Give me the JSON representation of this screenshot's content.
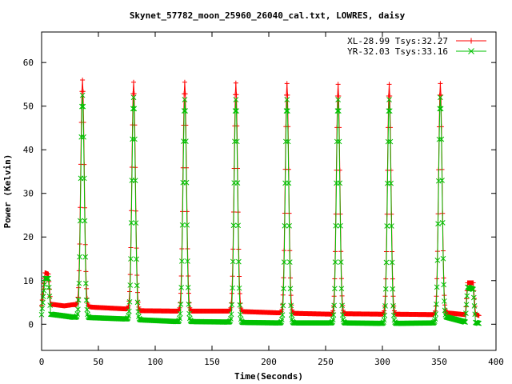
{
  "chart_data": {
    "type": "line",
    "title": "Skynet_57782_moon_25960_26040_cal.txt, LOWRES, daisy",
    "xlabel": "Time(Seconds)",
    "ylabel": "Power (Kelvin)",
    "xlim": [
      0,
      400
    ],
    "ylim": [
      -6,
      67
    ],
    "x_ticks": [
      0,
      50,
      100,
      150,
      200,
      250,
      300,
      350,
      400
    ],
    "y_ticks": [
      0,
      10,
      20,
      30,
      40,
      50,
      60
    ],
    "grid": false,
    "legend_position": "top-right",
    "series": [
      {
        "name": "XL-28.99 Tsys:32.27",
        "color": "#ff0000",
        "marker": "+",
        "baseline_points": [
          [
            0,
            4.3
          ],
          [
            3,
            11.8
          ],
          [
            6,
            11.5
          ],
          [
            8,
            4.6
          ],
          [
            20,
            4.2
          ],
          [
            28,
            4.5
          ],
          [
            45,
            3.9
          ],
          [
            75,
            3.5
          ],
          [
            87,
            3.1
          ],
          [
            120,
            3.0
          ],
          [
            132,
            3.0
          ],
          [
            165,
            3.0
          ],
          [
            177,
            2.9
          ],
          [
            210,
            2.6
          ],
          [
            222,
            2.5
          ],
          [
            255,
            2.3
          ],
          [
            267,
            2.4
          ],
          [
            300,
            2.3
          ],
          [
            312,
            2.3
          ],
          [
            345,
            2.2
          ],
          [
            357,
            2.6
          ],
          [
            373,
            2.2
          ],
          [
            375,
            9.5
          ],
          [
            380,
            9.5
          ],
          [
            382,
            2.3
          ],
          [
            385,
            2.0
          ]
        ],
        "peaks": [
          [
            36,
            56.0
          ],
          [
            81,
            55.5
          ],
          [
            126,
            55.5
          ],
          [
            171,
            55.3
          ],
          [
            216,
            55.2
          ],
          [
            261,
            55.0
          ],
          [
            306,
            55.0
          ],
          [
            351,
            55.2
          ]
        ]
      },
      {
        "name": "YR-32.03 Tsys:33.16",
        "color": "#00c000",
        "marker": "x",
        "baseline_points": [
          [
            0,
            2.2
          ],
          [
            3,
            10.5
          ],
          [
            6,
            10.5
          ],
          [
            8,
            2.3
          ],
          [
            20,
            1.9
          ],
          [
            28,
            1.6
          ],
          [
            45,
            1.5
          ],
          [
            75,
            1.2
          ],
          [
            87,
            1.0
          ],
          [
            120,
            0.6
          ],
          [
            132,
            0.6
          ],
          [
            165,
            0.5
          ],
          [
            177,
            0.4
          ],
          [
            210,
            0.3
          ],
          [
            222,
            0.3
          ],
          [
            255,
            0.3
          ],
          [
            267,
            0.3
          ],
          [
            300,
            0.2
          ],
          [
            312,
            0.2
          ],
          [
            345,
            0.3
          ],
          [
            357,
            1.6
          ],
          [
            373,
            0.5
          ],
          [
            375,
            8.5
          ],
          [
            380,
            8.0
          ],
          [
            382,
            0.4
          ],
          [
            385,
            0.2
          ]
        ],
        "peaks": [
          [
            36,
            52.5
          ],
          [
            81,
            52.0
          ],
          [
            126,
            51.5
          ],
          [
            171,
            51.5
          ],
          [
            216,
            51.5
          ],
          [
            261,
            51.5
          ],
          [
            306,
            51.5
          ],
          [
            351,
            52.0
          ]
        ]
      }
    ]
  }
}
